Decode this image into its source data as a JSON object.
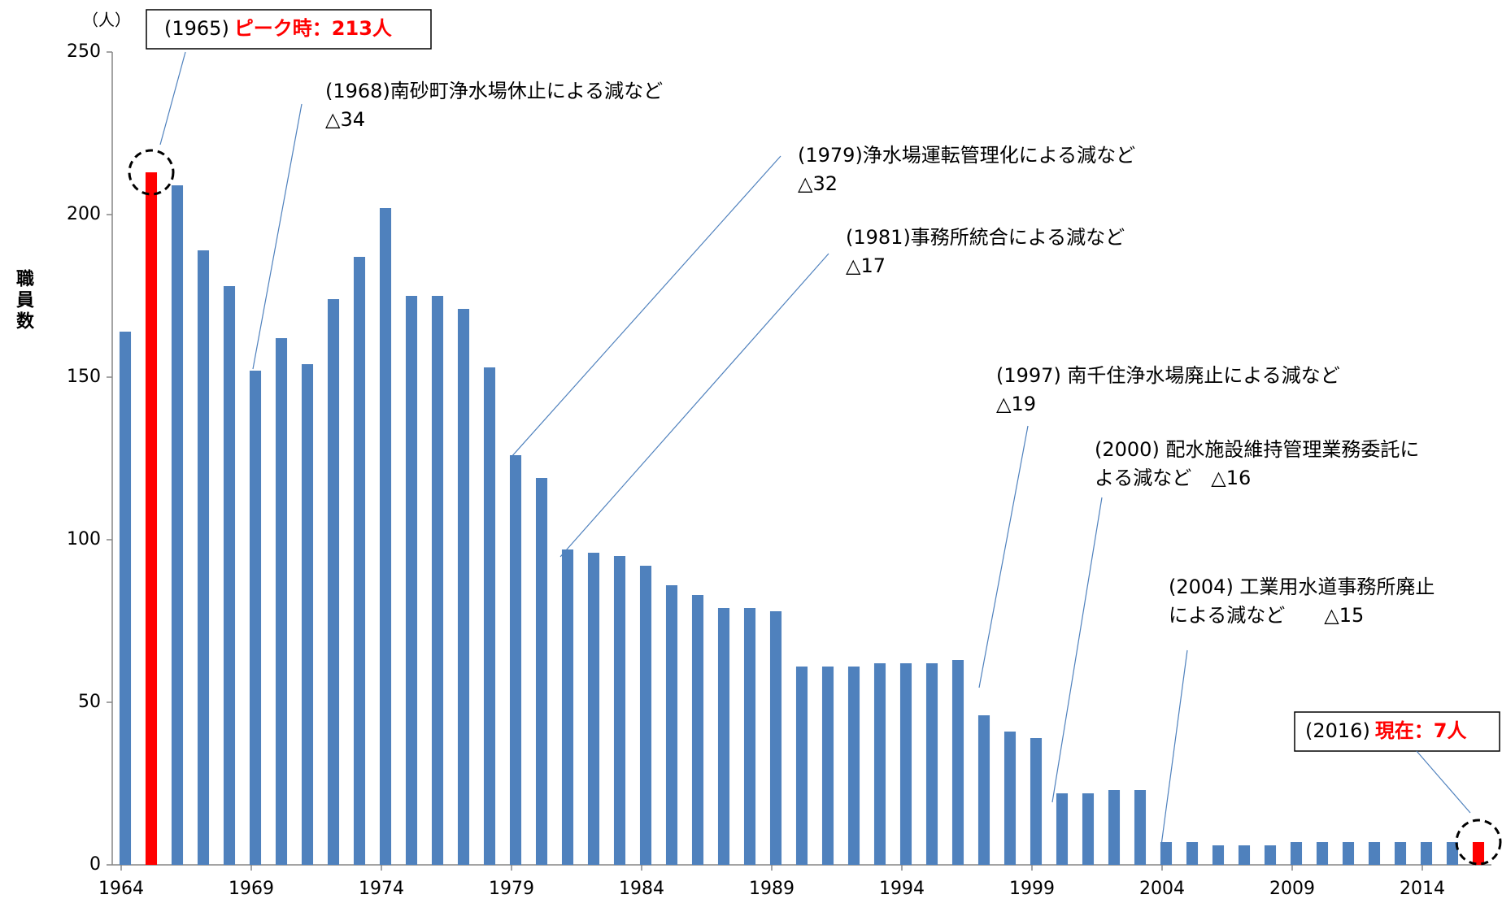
{
  "chart_data": {
    "type": "bar",
    "y_label": "職員数",
    "y_unit": "（人）",
    "categories": [
      "1964",
      null,
      null,
      null,
      null,
      "1969",
      null,
      null,
      null,
      null,
      "1974",
      null,
      null,
      null,
      null,
      "1979",
      null,
      null,
      null,
      null,
      "1984",
      null,
      null,
      null,
      null,
      "1989",
      null,
      null,
      null,
      null,
      "1994",
      null,
      null,
      null,
      null,
      "1999",
      null,
      null,
      null,
      null,
      "2004",
      null,
      null,
      null,
      null,
      "2009",
      null,
      null,
      null,
      null,
      "2014",
      null,
      null
    ],
    "values": [
      164,
      213,
      209,
      189,
      178,
      152,
      162,
      154,
      174,
      187,
      202,
      175,
      175,
      171,
      153,
      126,
      119,
      97,
      96,
      95,
      92,
      86,
      83,
      79,
      79,
      78,
      61,
      61,
      61,
      62,
      62,
      62,
      63,
      46,
      41,
      39,
      22,
      22,
      23,
      23,
      7,
      7,
      6,
      6,
      6,
      7,
      7,
      7,
      7,
      7,
      7,
      7,
      7
    ],
    "color": "#4f81bd",
    "highlight_color": "#ff0000",
    "highlight": [
      1,
      52
    ],
    "ylim": [
      0,
      250
    ],
    "yticks": [
      0,
      50,
      100,
      150,
      200,
      250
    ],
    "grid": false,
    "annotations": [
      {
        "lines": [
          [
            "(1965)",
            "ピーク時：213人"
          ]
        ],
        "boxed": true
      },
      {
        "lines": [
          [
            "(1968)南砂町浄水場休止による減など"
          ],
          [
            "△34"
          ]
        ]
      },
      {
        "lines": [
          [
            "(1979)浄水場運転管理化による減など"
          ],
          [
            "△32"
          ]
        ]
      },
      {
        "lines": [
          [
            "(1981)事務所統合による減など"
          ],
          [
            "△17"
          ]
        ]
      },
      {
        "lines": [
          [
            "(1997) 南千住浄水場廃止による減など"
          ],
          [
            "△19"
          ]
        ]
      },
      {
        "lines": [
          [
            "(2000) 配水施設維持管理業務委託に"
          ],
          [
            "よる減など　△16"
          ]
        ]
      },
      {
        "lines": [
          [
            "(2004) 工業用水道事務所廃止"
          ],
          [
            "による減など　　△15"
          ]
        ]
      },
      {
        "lines": [
          [
            "(2016)",
            "現在：7人"
          ]
        ],
        "boxed": true
      }
    ]
  }
}
